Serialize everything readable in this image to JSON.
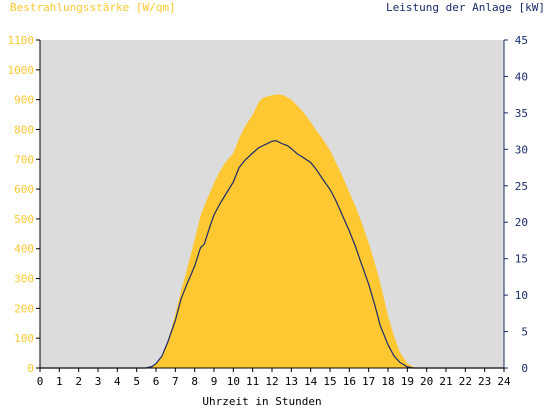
{
  "chart_data": {
    "type": "area",
    "left_axis_label": "Bestrahlungsstärke [W/qm]",
    "right_axis_label": "Leistung der Anlage [kW]",
    "xlabel": "Uhrzeit in Stunden",
    "xlim": [
      0,
      24
    ],
    "x_ticks": [
      0,
      1,
      2,
      3,
      4,
      5,
      6,
      7,
      8,
      9,
      10,
      11,
      12,
      13,
      14,
      15,
      16,
      17,
      18,
      19,
      20,
      21,
      22,
      23,
      24
    ],
    "ylim_left": [
      0,
      1100
    ],
    "y_ticks_left": [
      0,
      100,
      200,
      300,
      400,
      500,
      600,
      700,
      800,
      900,
      1000,
      1100
    ],
    "ylim_right": [
      0,
      45
    ],
    "y_ticks_right": [
      0,
      5,
      10,
      15,
      20,
      25,
      30,
      35,
      40,
      45
    ],
    "grid": false,
    "colors": {
      "irradiance": "#ffc832",
      "power": "#1a2a6c",
      "left_axis": "#ffc832",
      "right_axis": "#1a2a6c",
      "plot_bg": "#dcdcdc"
    },
    "series": [
      {
        "axis": "left",
        "style": "area",
        "x": [
          0,
          5.5,
          5.8,
          6.0,
          6.3,
          6.6,
          7.0,
          7.3,
          7.6,
          8.0,
          8.3,
          8.6,
          9.0,
          9.3,
          9.6,
          10.0,
          10.3,
          10.6,
          11.0,
          11.3,
          11.5,
          11.7,
          12.0,
          12.3,
          12.6,
          13.0,
          13.3,
          13.6,
          14.0,
          14.3,
          14.6,
          15.0,
          15.3,
          15.6,
          16.0,
          16.3,
          16.6,
          17.0,
          17.3,
          17.6,
          18.0,
          18.3,
          18.6,
          19.0,
          19.3,
          19.5,
          24
        ],
        "y": [
          0,
          0,
          5,
          15,
          40,
          90,
          180,
          260,
          330,
          430,
          510,
          560,
          620,
          660,
          690,
          720,
          770,
          810,
          850,
          890,
          905,
          910,
          915,
          918,
          915,
          900,
          880,
          860,
          825,
          795,
          770,
          730,
          690,
          650,
          590,
          545,
          495,
          420,
          355,
          285,
          175,
          110,
          55,
          15,
          4,
          0,
          0
        ]
      },
      {
        "axis": "right",
        "style": "line",
        "x": [
          0,
          5.5,
          5.8,
          6.0,
          6.3,
          6.6,
          7.0,
          7.3,
          7.6,
          8.0,
          8.3,
          8.5,
          8.8,
          9.0,
          9.3,
          9.6,
          10.0,
          10.3,
          10.6,
          11.0,
          11.3,
          11.6,
          12.0,
          12.2,
          12.5,
          12.8,
          13.0,
          13.3,
          13.6,
          14.0,
          14.3,
          14.6,
          15.0,
          15.3,
          15.6,
          16.0,
          16.3,
          16.6,
          17.0,
          17.3,
          17.6,
          18.0,
          18.3,
          18.6,
          19.0,
          19.3,
          19.5,
          24
        ],
        "y": [
          0,
          0,
          0.2,
          0.6,
          1.6,
          3.5,
          6.5,
          9.5,
          11.5,
          14.0,
          16.5,
          17.0,
          19.5,
          21.0,
          22.5,
          23.8,
          25.5,
          27.5,
          28.5,
          29.5,
          30.2,
          30.6,
          31.1,
          31.2,
          30.8,
          30.5,
          30.1,
          29.4,
          28.9,
          28.2,
          27.2,
          26.0,
          24.5,
          23.0,
          21.2,
          18.8,
          16.8,
          14.5,
          11.5,
          8.8,
          5.8,
          3.2,
          1.7,
          0.8,
          0.15,
          0,
          0,
          0
        ]
      }
    ]
  }
}
